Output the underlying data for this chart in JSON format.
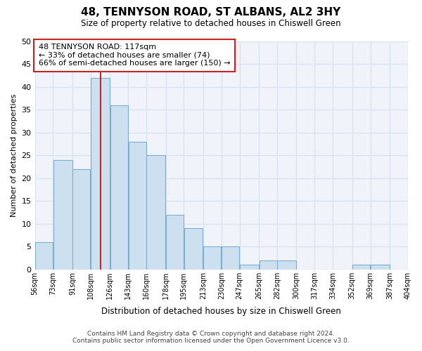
{
  "title": "48, TENNYSON ROAD, ST ALBANS, AL2 3HY",
  "subtitle": "Size of property relative to detached houses in Chiswell Green",
  "xlabel": "Distribution of detached houses by size in Chiswell Green",
  "ylabel": "Number of detached properties",
  "bar_edges": [
    56,
    73,
    91,
    108,
    126,
    143,
    160,
    178,
    195,
    213,
    230,
    247,
    265,
    282,
    300,
    317,
    334,
    352,
    369,
    387,
    404
  ],
  "bar_heights": [
    6,
    24,
    22,
    42,
    36,
    28,
    25,
    12,
    9,
    5,
    5,
    1,
    2,
    2,
    0,
    0,
    0,
    1,
    1,
    0
  ],
  "bar_color": "#cce0f0",
  "bar_edge_color": "#7eaecf",
  "property_line_x": 117,
  "annotation_title": "48 TENNYSON ROAD: 117sqm",
  "annotation_line1": "← 33% of detached houses are smaller (74)",
  "annotation_line2": "66% of semi-detached houses are larger (150) →",
  "annotation_box_color": "#ffffff",
  "annotation_box_edge": "#cc2222",
  "property_line_color": "#cc2222",
  "ylim": [
    0,
    50
  ],
  "yticks": [
    0,
    5,
    10,
    15,
    20,
    25,
    30,
    35,
    40,
    45,
    50
  ],
  "tick_labels": [
    "56sqm",
    "73sqm",
    "91sqm",
    "108sqm",
    "126sqm",
    "143sqm",
    "160sqm",
    "178sqm",
    "195sqm",
    "213sqm",
    "230sqm",
    "247sqm",
    "265sqm",
    "282sqm",
    "300sqm",
    "317sqm",
    "334sqm",
    "352sqm",
    "369sqm",
    "387sqm",
    "404sqm"
  ],
  "footer_line1": "Contains HM Land Registry data © Crown copyright and database right 2024.",
  "footer_line2": "Contains public sector information licensed under the Open Government Licence v3.0.",
  "bg_color": "#ffffff",
  "plot_bg_color": "#f0f4fa",
  "grid_color": "#d8e4f0"
}
